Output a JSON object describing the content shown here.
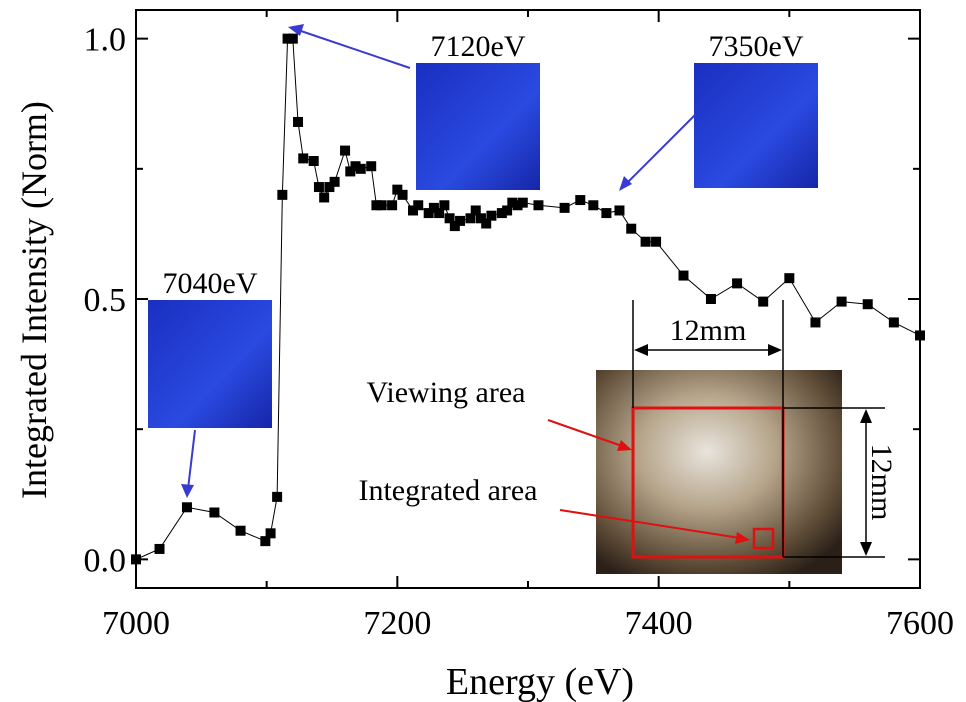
{
  "chart_data": {
    "type": "scatter-line",
    "x_label": "Energy (eV)",
    "y_label": "Integrated Intensity (Norm)",
    "x": [
      7000,
      7018,
      7039,
      7060,
      7080,
      7099,
      7103,
      7108,
      7112,
      7116,
      7120,
      7124,
      7128,
      7136,
      7140,
      7144,
      7148,
      7152,
      7160,
      7164,
      7168,
      7172,
      7180,
      7184,
      7188,
      7196,
      7200,
      7204,
      7212,
      7216,
      7224,
      7228,
      7232,
      7236,
      7240,
      7244,
      7248,
      7256,
      7260,
      7264,
      7268,
      7272,
      7280,
      7284,
      7288,
      7292,
      7296,
      7308,
      7328,
      7340,
      7350,
      7360,
      7370,
      7379,
      7390,
      7398,
      7419,
      7440,
      7460,
      7480,
      7500,
      7520,
      7540,
      7560,
      7580,
      7600
    ],
    "values": [
      0.0,
      0.02,
      0.1,
      0.09,
      0.055,
      0.035,
      0.05,
      0.12,
      0.7,
      1.0,
      1.0,
      0.84,
      0.77,
      0.765,
      0.715,
      0.695,
      0.715,
      0.725,
      0.785,
      0.745,
      0.755,
      0.75,
      0.755,
      0.68,
      0.68,
      0.68,
      0.71,
      0.7,
      0.67,
      0.68,
      0.665,
      0.675,
      0.665,
      0.68,
      0.655,
      0.64,
      0.65,
      0.655,
      0.67,
      0.655,
      0.645,
      0.66,
      0.665,
      0.67,
      0.685,
      0.68,
      0.685,
      0.68,
      0.675,
      0.69,
      0.68,
      0.665,
      0.67,
      0.635,
      0.61,
      0.61,
      0.545,
      0.5,
      0.53,
      0.495,
      0.54,
      0.455,
      0.495,
      0.49,
      0.455,
      0.43
    ],
    "color": "#000000",
    "xlim": [
      7000,
      7600
    ],
    "xticks": [
      7000,
      7200,
      7400,
      7600
    ],
    "xminorticks": [
      7100,
      7300,
      7500
    ],
    "ylim": [
      -0.055,
      1.055
    ],
    "yticks": [
      {
        "value": 0,
        "label": "0.0"
      },
      0.5,
      {
        "value": 1,
        "label": "1.0"
      }
    ],
    "yminorticks": [
      0.25,
      0.75
    ],
    "annotations": [
      "7040eV",
      "7120eV",
      "7350eV",
      "12mm",
      "12mm",
      "Viewing area",
      "Integrated area"
    ]
  }
}
